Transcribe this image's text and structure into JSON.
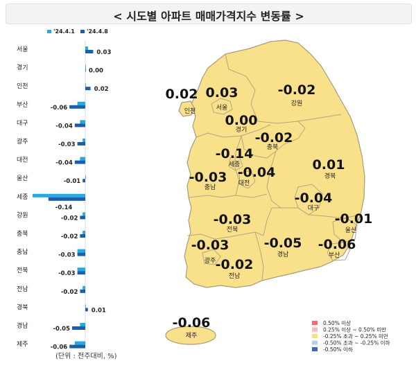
{
  "title": "< 시도별 아파트 매매가격지수 변동률 >",
  "unit_note": "(단위 : 전주대비, %)",
  "colors": {
    "prev_week": "#29a7e1",
    "this_week": "#1c5fa8",
    "map_fill": "#f9e08a",
    "map_stroke": "#a89a7a"
  },
  "chart_data": {
    "type": "bar",
    "orientation": "horizontal",
    "legend": [
      "'24.4.1",
      "'24.4.8"
    ],
    "categories": [
      "서울",
      "경기",
      "인천",
      "부산",
      "대구",
      "광주",
      "대전",
      "울산",
      "세종",
      "강원",
      "충북",
      "충남",
      "전북",
      "전남",
      "경북",
      "경남",
      "제주"
    ],
    "series": [
      {
        "name": "'24.4.1",
        "values": [
          0.01,
          0.0,
          0.0,
          -0.03,
          -0.02,
          -0.01,
          -0.02,
          0.0,
          -0.2,
          -0.01,
          -0.01,
          -0.03,
          -0.03,
          -0.01,
          0.0,
          -0.02,
          -0.04
        ]
      },
      {
        "name": "'24.4.8",
        "values": [
          0.03,
          0.0,
          0.02,
          -0.06,
          -0.04,
          -0.03,
          -0.04,
          -0.01,
          -0.14,
          -0.02,
          -0.02,
          -0.03,
          -0.03,
          -0.02,
          0.01,
          -0.05,
          -0.06
        ]
      }
    ],
    "value_labels": [
      "0.03",
      "0.00",
      "0.02",
      "-0.06",
      "-0.04",
      "-0.03",
      "-0.04",
      "-0.01",
      "-0.14",
      "-0.02",
      "-0.02",
      "-0.03",
      "-0.03",
      "-0.02",
      "0.01",
      "-0.05",
      "-0.06"
    ]
  },
  "map": {
    "regions": [
      {
        "name": "인천",
        "value": "0.02"
      },
      {
        "name": "서울",
        "value": "0.03"
      },
      {
        "name": "강원",
        "value": "-0.02"
      },
      {
        "name": "경기",
        "value": "0.00"
      },
      {
        "name": "충북",
        "value": "-0.02"
      },
      {
        "name": "세종",
        "value": "-0.14"
      },
      {
        "name": "충남",
        "value": "-0.03"
      },
      {
        "name": "대전",
        "value": "-0.04"
      },
      {
        "name": "경북",
        "value": "0.01"
      },
      {
        "name": "대구",
        "value": "-0.04"
      },
      {
        "name": "울산",
        "value": "-0.01"
      },
      {
        "name": "전북",
        "value": "-0.03"
      },
      {
        "name": "광주",
        "value": "-0.03"
      },
      {
        "name": "전남",
        "value": "-0.02"
      },
      {
        "name": "경남",
        "value": "-0.05"
      },
      {
        "name": "부산",
        "value": "-0.06"
      },
      {
        "name": "제주",
        "value": "-0.06"
      }
    ]
  },
  "color_legend": [
    {
      "label": "0.50% 이상",
      "color": "#f07070"
    },
    {
      "label": "0.25% 이상 ~ 0.50% 미만",
      "color": "#f6b9c0"
    },
    {
      "label": "-0.25% 초과 ~ 0.25% 미만",
      "color": "#f7e07a"
    },
    {
      "label": "-0.50% 초과 ~ -0.25% 이하",
      "color": "#b9cce8"
    },
    {
      "label": "-0.50% 이하",
      "color": "#3c67b4"
    }
  ]
}
